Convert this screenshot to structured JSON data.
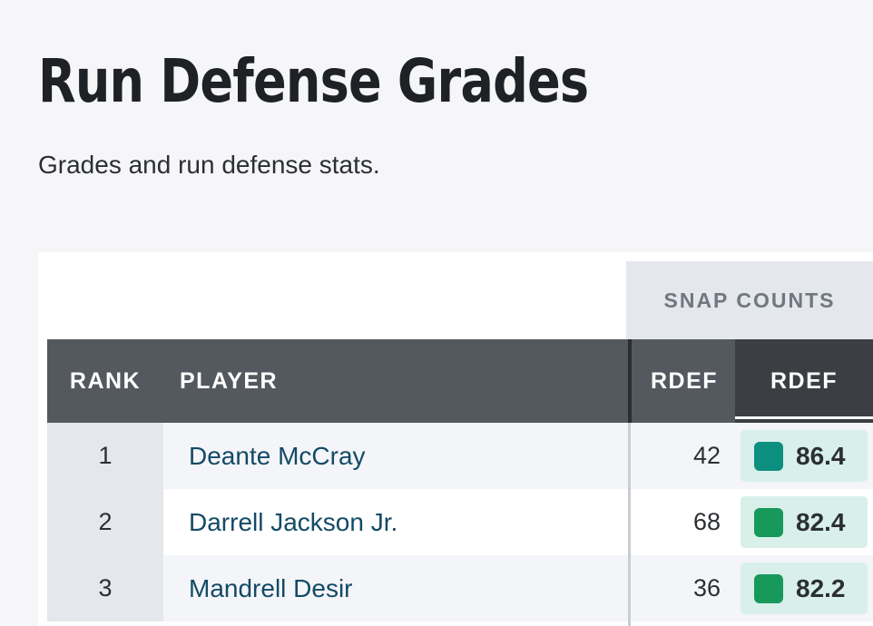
{
  "page": {
    "title": "Run Defense Grades",
    "subtitle": "Grades and run defense stats."
  },
  "table": {
    "group_header": "SNAP COUNTS",
    "columns": {
      "rank": "RANK",
      "player": "PLAYER",
      "snap_rdef": "RDEF",
      "grade_rdef": "RDEF"
    },
    "rows": [
      {
        "rank": "1",
        "player": "Deante McCray",
        "snap_rdef": "42",
        "grade_rdef": "86.4",
        "grade_color": "#0d8f80"
      },
      {
        "rank": "2",
        "player": "Darrell Jackson Jr.",
        "snap_rdef": "68",
        "grade_rdef": "82.4",
        "grade_color": "#17995c"
      },
      {
        "rank": "3",
        "player": "Mandrell Desir",
        "snap_rdef": "36",
        "grade_rdef": "82.2",
        "grade_color": "#17995c"
      }
    ]
  },
  "colors": {
    "header_bg": "#545960",
    "active_header_bg": "#3b3f44",
    "group_header_bg": "#e4e7eb",
    "grade_badge_bg": "#d8efea",
    "player_link": "#134a66"
  }
}
